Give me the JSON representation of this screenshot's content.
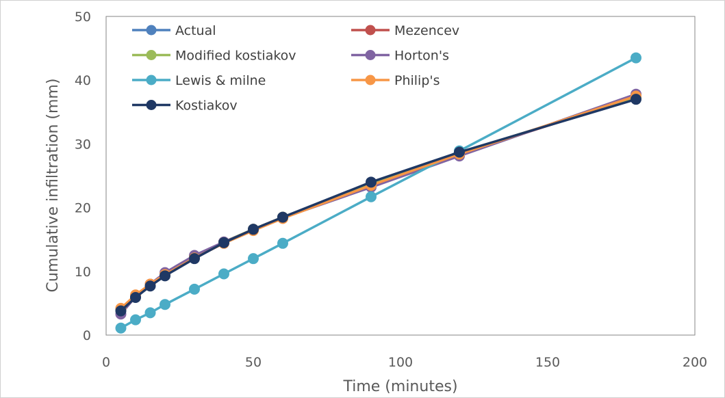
{
  "chart_data": {
    "type": "line",
    "title": "",
    "xlabel": "Time (minutes)",
    "ylabel": "Cumulative infiltration (mm)",
    "xlim": [
      0,
      200
    ],
    "ylim": [
      0,
      50
    ],
    "xticks": [
      0,
      50,
      100,
      150,
      200
    ],
    "yticks": [
      0,
      10,
      20,
      30,
      40,
      50
    ],
    "grid": false,
    "legend_position": "top-left, two columns",
    "x": [
      5,
      10,
      15,
      20,
      30,
      40,
      50,
      60,
      90,
      120,
      180
    ],
    "series": [
      {
        "name": "Actual",
        "color": "#4F81BD",
        "values": [
          4.0,
          6.1,
          7.9,
          9.5,
          12.2,
          14.6,
          16.6,
          18.5,
          23.8,
          28.6,
          37.2
        ]
      },
      {
        "name": "Mezencev",
        "color": "#C0504D",
        "values": [
          4.0,
          6.1,
          7.9,
          9.5,
          12.3,
          14.6,
          16.6,
          18.5,
          23.6,
          28.4,
          37.3
        ]
      },
      {
        "name": "Modified kostiakov",
        "color": "#9BBB59",
        "values": [
          4.0,
          6.1,
          7.9,
          9.5,
          12.2,
          14.6,
          16.6,
          18.5,
          23.8,
          28.6,
          37.2
        ]
      },
      {
        "name": "Horton's",
        "color": "#8064A2",
        "values": [
          3.3,
          6.0,
          8.0,
          9.8,
          12.5,
          14.6,
          16.5,
          18.4,
          23.2,
          28.1,
          37.8
        ]
      },
      {
        "name": "Lewis & milne",
        "color": "#4BACC6",
        "values": [
          1.1,
          2.4,
          3.5,
          4.8,
          7.2,
          9.6,
          12.0,
          14.4,
          21.7,
          28.9,
          43.5
        ]
      },
      {
        "name": "Philip's",
        "color": "#F79646",
        "values": [
          4.2,
          6.3,
          8.0,
          9.5,
          12.1,
          14.4,
          16.4,
          18.3,
          23.5,
          28.4,
          37.5
        ]
      },
      {
        "name": "Kostiakov",
        "color": "#1F3864",
        "values": [
          3.8,
          5.9,
          7.7,
          9.3,
          12.0,
          14.5,
          16.6,
          18.5,
          24.0,
          28.7,
          37.0
        ]
      }
    ]
  }
}
